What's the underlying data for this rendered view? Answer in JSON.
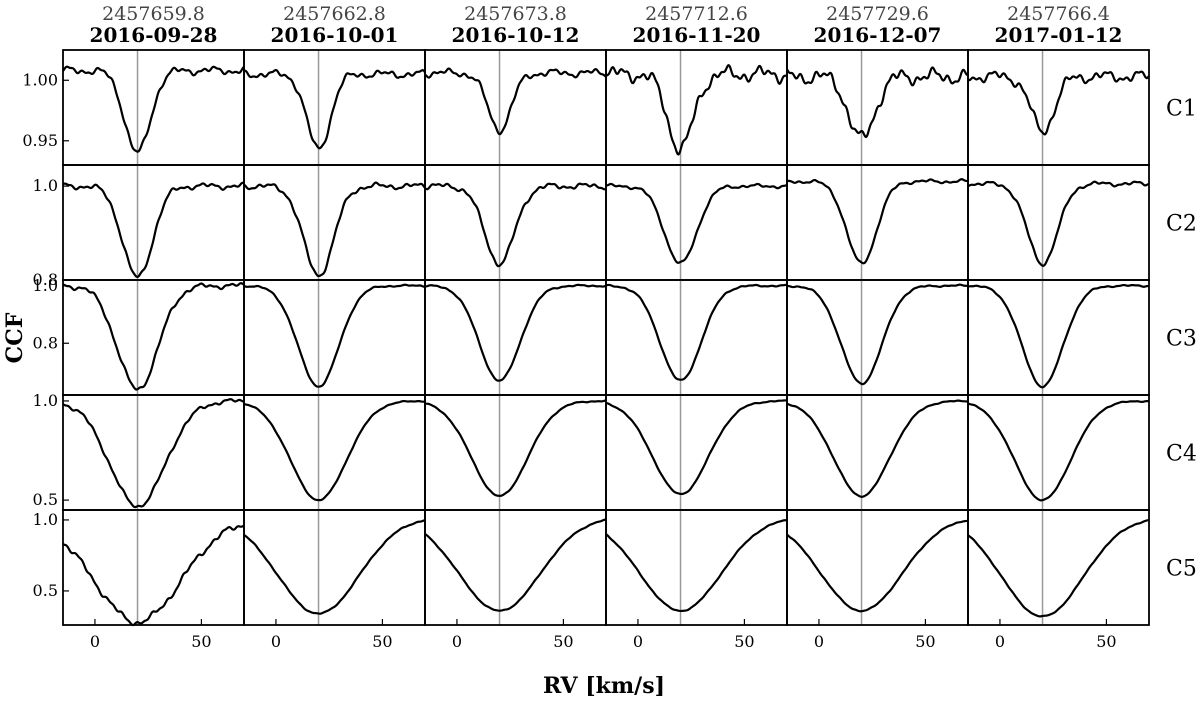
{
  "chart_data": {
    "type": "line",
    "xlabel": "RV [km/s]",
    "ylabel": "CCF",
    "x_ticks": [
      "0",
      "50"
    ],
    "xlim": [
      -15,
      70
    ],
    "reference_rv": 20,
    "colors": {
      "line": "#000000",
      "reference": "#999999"
    },
    "columns": [
      {
        "jd": "2457659.8",
        "date": "2016-09-28"
      },
      {
        "jd": "2457662.8",
        "date": "2016-10-01"
      },
      {
        "jd": "2457673.8",
        "date": "2016-10-12"
      },
      {
        "jd": "2457712.6",
        "date": "2016-11-20"
      },
      {
        "jd": "2457729.6",
        "date": "2016-12-07"
      },
      {
        "jd": "2457766.4",
        "date": "2017-01-12"
      }
    ],
    "rows": [
      {
        "label": "C1",
        "ylim": [
          0.93,
          1.025
        ],
        "y_ticks": [
          {
            "v": 1.0,
            "t": "1.00"
          },
          {
            "v": 0.95,
            "t": "0.95"
          }
        ],
        "shapes": [
          {
            "baseline": 1.008,
            "depth": 0.068,
            "width": 6.0,
            "noise": 0.004
          },
          {
            "baseline": 1.005,
            "depth": 0.062,
            "width": 5.5,
            "noise": 0.004
          },
          {
            "baseline": 1.006,
            "depth": 0.047,
            "width": 5.5,
            "noise": 0.004
          },
          {
            "baseline": 1.005,
            "depth": 0.062,
            "width": 6.0,
            "noise": 0.008
          },
          {
            "baseline": 1.003,
            "depth": 0.052,
            "width": 6.0,
            "noise": 0.008
          },
          {
            "baseline": 1.003,
            "depth": 0.045,
            "width": 5.5,
            "noise": 0.006
          }
        ]
      },
      {
        "label": "C2",
        "ylim": [
          0.8,
          1.045
        ],
        "y_ticks": [
          {
            "v": 1.0,
            "t": "1.0"
          },
          {
            "v": 0.8,
            "t": "0.8"
          }
        ],
        "shapes": [
          {
            "baseline": 1.0,
            "depth": 0.195,
            "width": 7.0,
            "noise": 0.008
          },
          {
            "baseline": 1.0,
            "depth": 0.19,
            "width": 7.0,
            "noise": 0.008
          },
          {
            "baseline": 1.0,
            "depth": 0.165,
            "width": 7.0,
            "noise": 0.008
          },
          {
            "baseline": 1.0,
            "depth": 0.165,
            "width": 7.5,
            "noise": 0.005
          },
          {
            "baseline": 1.01,
            "depth": 0.175,
            "width": 7.0,
            "noise": 0.005
          },
          {
            "baseline": 1.005,
            "depth": 0.17,
            "width": 7.0,
            "noise": 0.006
          }
        ]
      },
      {
        "label": "C3",
        "ylim": [
          0.62,
          1.02
        ],
        "y_ticks": [
          {
            "v": 1.0,
            "t": "1.0"
          },
          {
            "v": 0.8,
            "t": "0.8"
          }
        ],
        "shapes": [
          {
            "baseline": 1.0,
            "depth": 0.36,
            "width": 9.5,
            "noise": 0.012
          },
          {
            "baseline": 1.0,
            "depth": 0.35,
            "width": 9.5,
            "noise": 0.004
          },
          {
            "baseline": 1.0,
            "depth": 0.33,
            "width": 9.5,
            "noise": 0.004
          },
          {
            "baseline": 1.0,
            "depth": 0.33,
            "width": 9.5,
            "noise": 0.004
          },
          {
            "baseline": 1.0,
            "depth": 0.34,
            "width": 9.5,
            "noise": 0.004
          },
          {
            "baseline": 1.0,
            "depth": 0.35,
            "width": 9.5,
            "noise": 0.004
          }
        ]
      },
      {
        "label": "C4",
        "ylim": [
          0.45,
          1.03
        ],
        "y_ticks": [
          {
            "v": 1.0,
            "t": "1.0"
          },
          {
            "v": 0.5,
            "t": "0.5"
          }
        ],
        "shapes": [
          {
            "baseline": 1.0,
            "depth": 0.53,
            "width": 13.0,
            "noise": 0.015
          },
          {
            "baseline": 1.0,
            "depth": 0.5,
            "width": 13.0,
            "noise": 0.004
          },
          {
            "baseline": 1.0,
            "depth": 0.48,
            "width": 13.0,
            "noise": 0.004
          },
          {
            "baseline": 1.0,
            "depth": 0.47,
            "width": 13.0,
            "noise": 0.004
          },
          {
            "baseline": 1.0,
            "depth": 0.48,
            "width": 13.0,
            "noise": 0.004
          },
          {
            "baseline": 1.0,
            "depth": 0.5,
            "width": 13.0,
            "noise": 0.004
          }
        ]
      },
      {
        "label": "C5",
        "ylim": [
          0.26,
          1.07
        ],
        "y_ticks": [
          {
            "v": 1.0,
            "t": "1.0"
          },
          {
            "v": 0.5,
            "t": "0.5"
          }
        ],
        "shapes": [
          {
            "baseline": 1.0,
            "depth": 0.72,
            "width": 20.0,
            "noise": 0.03
          },
          {
            "baseline": 1.02,
            "depth": 0.68,
            "width": 19.0,
            "noise": 0.006
          },
          {
            "baseline": 1.02,
            "depth": 0.66,
            "width": 19.0,
            "noise": 0.005
          },
          {
            "baseline": 1.02,
            "depth": 0.66,
            "width": 19.0,
            "noise": 0.005
          },
          {
            "baseline": 1.02,
            "depth": 0.66,
            "width": 19.0,
            "noise": 0.005
          },
          {
            "baseline": 1.02,
            "depth": 0.7,
            "width": 19.0,
            "noise": 0.005
          }
        ]
      }
    ]
  }
}
